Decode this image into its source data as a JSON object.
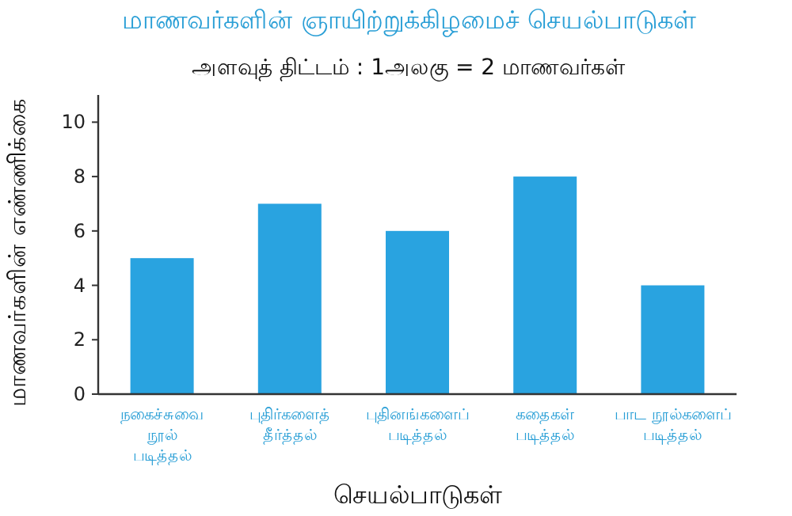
{
  "chart_data": {
    "type": "bar",
    "title": "மாணவர்களின் ஞாயிற்றுக்கிழமைச் செயல்பாடுகள்",
    "subtitle": "அளவுத் திட்டம் : 1அலகு  = 2 மாணவர்கள்",
    "xlabel": "செயல்பாடுகள்",
    "ylabel": "மாணவர்களின் எண்ணிக்கை",
    "categories": [
      "நகைச்சுவை\nநூல்\nபடித்தல்",
      "புதிர்களைத்\nதீர்த்தல்",
      "புதினங்களைப்\nபடித்தல்",
      "கதைகள்\nபடித்தல்",
      "பாட நூல்களைப்\nபடித்தல்"
    ],
    "values": [
      5,
      7,
      6,
      8,
      4
    ],
    "color": "#29a3e0",
    "ylim": [
      0,
      11
    ],
    "yticks": [
      0,
      2,
      4,
      6,
      8,
      10
    ],
    "grid": false
  }
}
